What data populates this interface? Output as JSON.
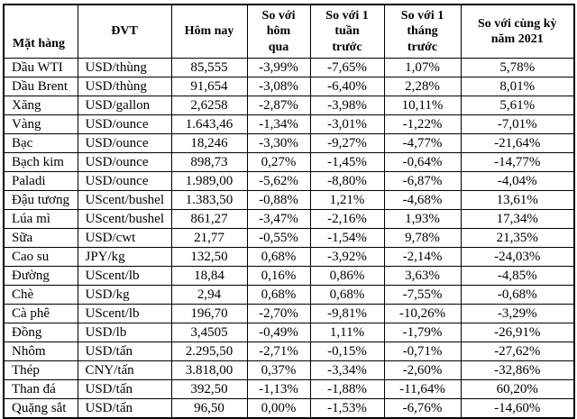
{
  "colors": {
    "background": "#ffffff",
    "border": "#000000",
    "text": "#000000"
  },
  "chart_data": {
    "type": "table",
    "columns": [
      "Mặt hàng",
      "ĐVT",
      "Hôm nay",
      "So với\nhôm\nqua",
      "So với 1\ntuần\ntrước",
      "So với 1\ntháng\ntrước",
      "So với cùng kỳ\nnăm 2021"
    ],
    "column_keys": [
      "commodity",
      "unit",
      "today",
      "vs-yesterday",
      "vs-1-week-prior",
      "vs-1-month-prior",
      "vs-same-period-2021"
    ],
    "rows": [
      [
        "Dầu WTI",
        "USD/thùng",
        "85,555",
        "-3,99%",
        "-7,65%",
        "1,07%",
        "5,78%"
      ],
      [
        "Dầu Brent",
        "USD/thùng",
        "91,654",
        "-3,08%",
        "-6,40%",
        "2,28%",
        "8,01%"
      ],
      [
        "Xăng",
        "USD/gallon",
        "2,6258",
        "-2,87%",
        "-3,98%",
        "10,11%",
        "5,61%"
      ],
      [
        "Vàng",
        "USD/ounce",
        "1.643,46",
        "-1,34%",
        "-3,01%",
        "-1,22%",
        "-7,01%"
      ],
      [
        "Bạc",
        "USD/ounce",
        "18,246",
        "-3,30%",
        "-9,27%",
        "-4,77%",
        "-21,64%"
      ],
      [
        "Bạch kim",
        "USD/ounce",
        "898,73",
        "0,27%",
        "-1,45%",
        "-0,64%",
        "-14,77%"
      ],
      [
        "Paladi",
        "USD/ounce",
        "1.989,00",
        "-5,62%",
        "-8,80%",
        "-6,87%",
        "-4,04%"
      ],
      [
        "Đậu tương",
        "UScent/bushel",
        "1.383,50",
        "-0,88%",
        "1,21%",
        "-4,68%",
        "13,61%"
      ],
      [
        "Lúa mì",
        "UScent/bushel",
        "861,27",
        "-3,47%",
        "-2,16%",
        "1,93%",
        "17,34%"
      ],
      [
        "Sữa",
        "USD/cwt",
        "21,77",
        "-0,55%",
        "-1,54%",
        "9,78%",
        "21,35%"
      ],
      [
        "Cao su",
        "JPY/kg",
        "132,50",
        "0,68%",
        "-3,92%",
        "-2,14%",
        "-24,03%"
      ],
      [
        "Đường",
        "UScent/lb",
        "18,84",
        "0,16%",
        "0,86%",
        "3,63%",
        "-4,85%"
      ],
      [
        "Chè",
        "USD/kg",
        "2,94",
        "0,68%",
        "0,68%",
        "-7,55%",
        "-0,68%"
      ],
      [
        "Cà phê",
        "UScent/lb",
        "196,70",
        "-2,70%",
        "-9,81%",
        "-10,26%",
        "-3,29%"
      ],
      [
        "Đồng",
        "USD/lb",
        "3,4505",
        "-0,49%",
        "1,11%",
        "-1,79%",
        "-26,91%"
      ],
      [
        "Nhôm",
        "USD/tấn",
        "2.295,50",
        "-2,71%",
        "-0,15%",
        "-0,71%",
        "-27,62%"
      ],
      [
        "Thép",
        "CNY/tấn",
        "3.818,00",
        "0,37%",
        "-3,34%",
        "-2,60%",
        "-32,86%"
      ],
      [
        "Than đá",
        "USD/tấn",
        "392,50",
        "-1,13%",
        "-1,88%",
        "-11,64%",
        "60,20%"
      ],
      [
        "Quặng sắt",
        "USD/tấn",
        "96,50",
        "0,00%",
        "-1,53%",
        "-6,76%",
        "-14,60%"
      ]
    ]
  }
}
